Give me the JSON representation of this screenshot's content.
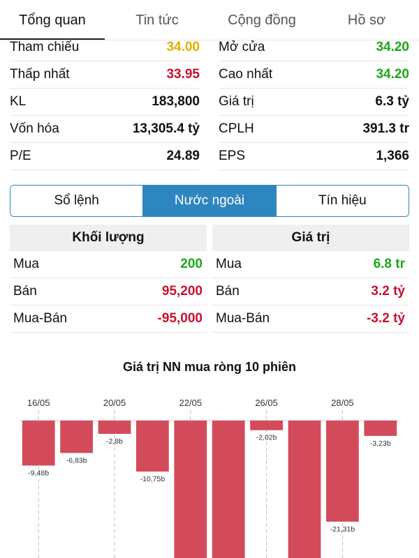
{
  "tabs": [
    {
      "label": "Tổng quan",
      "active": true
    },
    {
      "label": "Tin tức",
      "active": false
    },
    {
      "label": "Cộng đồng",
      "active": false
    },
    {
      "label": "Hồ sơ",
      "active": false
    }
  ],
  "stats": [
    [
      {
        "label": "Tham chiếu",
        "value": "34.00",
        "color": "yellow"
      },
      {
        "label": "Mở cửa",
        "value": "34.20",
        "color": "green"
      }
    ],
    [
      {
        "label": "Thấp nhất",
        "value": "33.95",
        "color": "red"
      },
      {
        "label": "Cao nhất",
        "value": "34.20",
        "color": "green"
      }
    ],
    [
      {
        "label": "KL",
        "value": "183,800",
        "color": "default"
      },
      {
        "label": "Giá trị",
        "value": "6.3 tỷ",
        "color": "default"
      }
    ],
    [
      {
        "label": "Vốn hóa",
        "value": "13,305.4 tỷ",
        "color": "default"
      },
      {
        "label": "CPLH",
        "value": "391.3 tr",
        "color": "default"
      }
    ],
    [
      {
        "label": "P/E",
        "value": "24.89",
        "color": "default"
      },
      {
        "label": "EPS",
        "value": "1,366",
        "color": "default"
      }
    ]
  ],
  "segments": [
    {
      "label": "Sổ lệnh",
      "active": false
    },
    {
      "label": "Nước ngoài",
      "active": true
    },
    {
      "label": "Tín hiệu",
      "active": false
    }
  ],
  "foreign": {
    "volume": {
      "header": "Khối lượng",
      "rows": [
        {
          "label": "Mua",
          "value": "200",
          "color": "green"
        },
        {
          "label": "Bán",
          "value": "95,200",
          "color": "red"
        },
        {
          "label": "Mua-Bán",
          "value": "-95,000",
          "color": "red"
        }
      ]
    },
    "value": {
      "header": "Giá trị",
      "rows": [
        {
          "label": "Mua",
          "value": "6.8 tr",
          "color": "green"
        },
        {
          "label": "Bán",
          "value": "3.2 tỷ",
          "color": "red"
        },
        {
          "label": "Mua-Bán",
          "value": "-3.2 tỷ",
          "color": "red"
        }
      ]
    }
  },
  "colors": {
    "accent": "#2e86c1",
    "up": "#1aa81a",
    "down": "#c8102e",
    "reference": "#e3b000",
    "bar": "#d34b5a"
  },
  "chart_data": {
    "type": "bar",
    "title": "Giá trị NN mua ròng 10 phiên",
    "x_tick_labels": [
      "16/05",
      "20/05",
      "22/05",
      "26/05",
      "28/05"
    ],
    "bars": [
      {
        "value": -9.48,
        "label": "-9,48b"
      },
      {
        "value": -6.83,
        "label": "-6,83b"
      },
      {
        "value": -2.8,
        "label": "-2,8b"
      },
      {
        "value": -10.75,
        "label": "-10,75b"
      },
      {
        "value": -30.0,
        "label": ""
      },
      {
        "value": -30.0,
        "label": ""
      },
      {
        "value": -2.02,
        "label": "-2,02b"
      },
      {
        "value": -30.0,
        "label": ""
      },
      {
        "value": -21.31,
        "label": "-21,31b"
      },
      {
        "value": -3.23,
        "label": "-3,23b"
      }
    ],
    "ylim": [
      -30,
      0
    ],
    "grid": "dashed-vertical"
  }
}
